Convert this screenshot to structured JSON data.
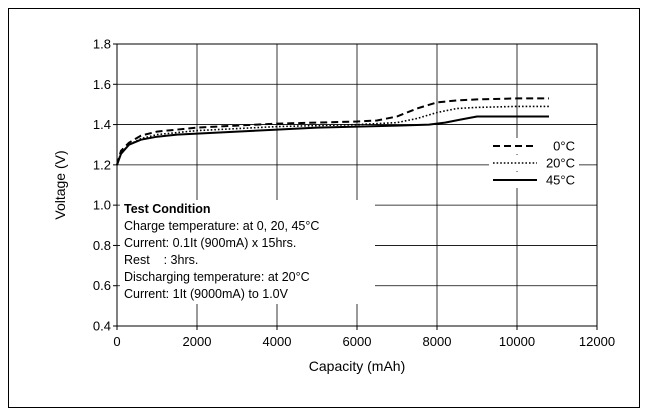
{
  "chart_data": {
    "type": "line",
    "title": "",
    "xlabel": "Capacity (mAh)",
    "ylabel": "Voltage (V)",
    "xlim": [
      0,
      12000
    ],
    "ylim": [
      0.4,
      1.8
    ],
    "xticks": [
      0,
      2000,
      4000,
      6000,
      8000,
      10000,
      12000
    ],
    "yticks": [
      0.4,
      0.6,
      0.8,
      1.0,
      1.2,
      1.4,
      1.6,
      1.8
    ],
    "xtick_labels": [
      "0",
      "2000",
      "4000",
      "6000",
      "8000",
      "10000",
      "12000"
    ],
    "ytick_labels": [
      "0.4",
      "0.6",
      "0.8",
      "1.0",
      "1.2",
      "1.4",
      "1.6",
      "1.8"
    ],
    "grid": true,
    "legend_position": "right",
    "series": [
      {
        "name": "0°C",
        "style": "dashed",
        "points": [
          [
            0,
            1.2
          ],
          [
            100,
            1.27
          ],
          [
            300,
            1.31
          ],
          [
            600,
            1.345
          ],
          [
            1000,
            1.365
          ],
          [
            1500,
            1.375
          ],
          [
            2000,
            1.385
          ],
          [
            3000,
            1.395
          ],
          [
            4000,
            1.405
          ],
          [
            5000,
            1.41
          ],
          [
            6000,
            1.415
          ],
          [
            6500,
            1.42
          ],
          [
            7000,
            1.44
          ],
          [
            7500,
            1.48
          ],
          [
            8000,
            1.51
          ],
          [
            8500,
            1.52
          ],
          [
            9000,
            1.525
          ],
          [
            10000,
            1.53
          ],
          [
            10800,
            1.53
          ]
        ]
      },
      {
        "name": "20°C",
        "style": "dotted",
        "points": [
          [
            0,
            1.2
          ],
          [
            100,
            1.26
          ],
          [
            300,
            1.3
          ],
          [
            600,
            1.33
          ],
          [
            1000,
            1.35
          ],
          [
            1500,
            1.36
          ],
          [
            2000,
            1.37
          ],
          [
            3000,
            1.38
          ],
          [
            4000,
            1.39
          ],
          [
            5000,
            1.395
          ],
          [
            6000,
            1.4
          ],
          [
            7000,
            1.41
          ],
          [
            7500,
            1.43
          ],
          [
            8000,
            1.46
          ],
          [
            8500,
            1.48
          ],
          [
            9000,
            1.485
          ],
          [
            10000,
            1.49
          ],
          [
            10800,
            1.49
          ]
        ]
      },
      {
        "name": "45°C",
        "style": "solid",
        "points": [
          [
            0,
            1.2
          ],
          [
            100,
            1.255
          ],
          [
            300,
            1.3
          ],
          [
            600,
            1.325
          ],
          [
            1000,
            1.34
          ],
          [
            1500,
            1.35
          ],
          [
            2000,
            1.355
          ],
          [
            3000,
            1.365
          ],
          [
            4000,
            1.375
          ],
          [
            5000,
            1.385
          ],
          [
            6000,
            1.39
          ],
          [
            7000,
            1.395
          ],
          [
            7800,
            1.4
          ],
          [
            8200,
            1.41
          ],
          [
            8600,
            1.425
          ],
          [
            9000,
            1.44
          ],
          [
            10000,
            1.44
          ],
          [
            10800,
            1.44
          ]
        ]
      }
    ],
    "annotation": {
      "title": "Test Condition",
      "lines": [
        "Charge temperature: at 0, 20, 45°C",
        "Current: 0.1It (900mA) x 15hrs.",
        "Rest    : 3hrs.",
        "Discharging temperature: at 20°C",
        "Current: 1It (9000mA) to 1.0V"
      ]
    }
  }
}
